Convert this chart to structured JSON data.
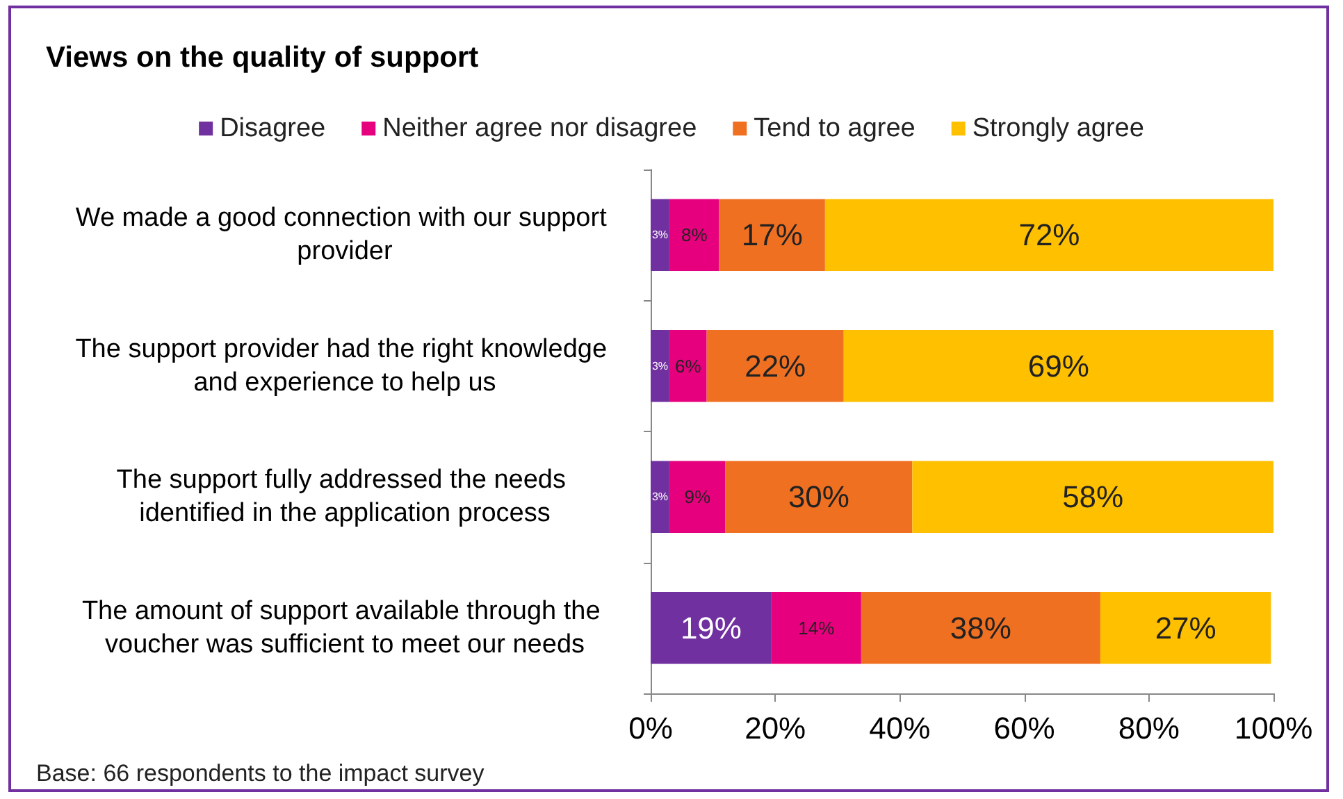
{
  "chart_data": {
    "type": "bar",
    "orientation": "horizontal",
    "stacked": true,
    "title": "Views on the quality of support",
    "categories": [
      "We made a good connection with our support provider",
      "The support provider had the right knowledge and experience to help us",
      "The support fully addressed the needs identified in the application process",
      "The amount of support available through the voucher was sufficient to meet our needs"
    ],
    "series": [
      {
        "name": "Disagree",
        "color": "#7030a0",
        "values": [
          3,
          3,
          3,
          19.4
        ],
        "value_labels": [
          "3%",
          "3%",
          "3%",
          "19%"
        ]
      },
      {
        "name": "Neither agree nor disagree",
        "color": "#e6007e",
        "values": [
          8,
          6,
          9,
          14.4
        ],
        "value_labels": [
          "8%",
          "6%",
          "9%",
          "14%"
        ]
      },
      {
        "name": "Tend to agree",
        "color": "#f07022",
        "values": [
          17,
          22,
          30,
          38.4
        ],
        "value_labels": [
          "17%",
          "22%",
          "30%",
          "38%"
        ]
      },
      {
        "name": "Strongly agree",
        "color": "#ffc000",
        "values": [
          72,
          69,
          58,
          27.4
        ],
        "value_labels": [
          "72%",
          "69%",
          "58%",
          "27%"
        ]
      }
    ],
    "xlim": [
      0,
      100
    ],
    "xticks": [
      {
        "value": 0,
        "label": "0%"
      },
      {
        "value": 20,
        "label": "20%"
      },
      {
        "value": 40,
        "label": "40%"
      },
      {
        "value": 60,
        "label": "60%"
      },
      {
        "value": 80,
        "label": "80%"
      },
      {
        "value": 100,
        "label": "100%"
      }
    ],
    "grid": false,
    "legend": "top",
    "annotations": [
      "Base: 66 respondents to the impact survey"
    ]
  }
}
